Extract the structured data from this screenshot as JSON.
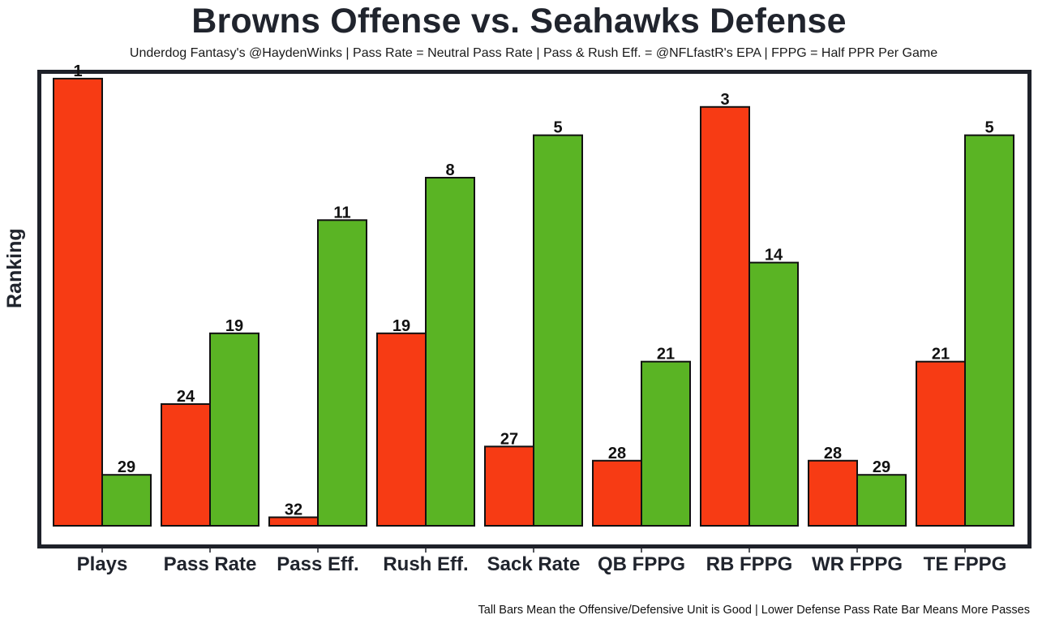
{
  "chart_data": {
    "type": "bar",
    "title": "Browns Offense vs. Seahawks Defense",
    "subtitle": "Underdog Fantasy's @HaydenWinks | Pass Rate = Neutral Pass Rate | Pass & Rush Eff. = @NFLfastR's EPA | FPPG = Half PPR Per Game",
    "xlabel": "",
    "ylabel": "Ranking",
    "footnote": "Tall Bars Mean the Offensive/Defensive Unit is Good | Lower Defense Pass Rate Bar Means More Passes",
    "categories": [
      "Plays",
      "Pass Rate",
      "Pass Eff.",
      "Rush Eff.",
      "Sack Rate",
      "QB FPPG",
      "RB FPPG",
      "WR FPPG",
      "TE FPPG"
    ],
    "series": [
      {
        "name": "Browns Offense",
        "color": "#f73b14",
        "values": [
          1,
          24,
          32,
          19,
          27,
          28,
          3,
          28,
          21
        ]
      },
      {
        "name": "Seahawks Defense",
        "color": "#5ab424",
        "values": [
          29,
          19,
          11,
          8,
          5,
          21,
          14,
          29,
          5
        ]
      }
    ],
    "value_encoding": "bar height = 33 - ranking (rank 1 tallest)",
    "ylim": [
      0.4,
      32.5
    ],
    "y_ticks_shown": false,
    "grid": false,
    "legend": "none"
  }
}
